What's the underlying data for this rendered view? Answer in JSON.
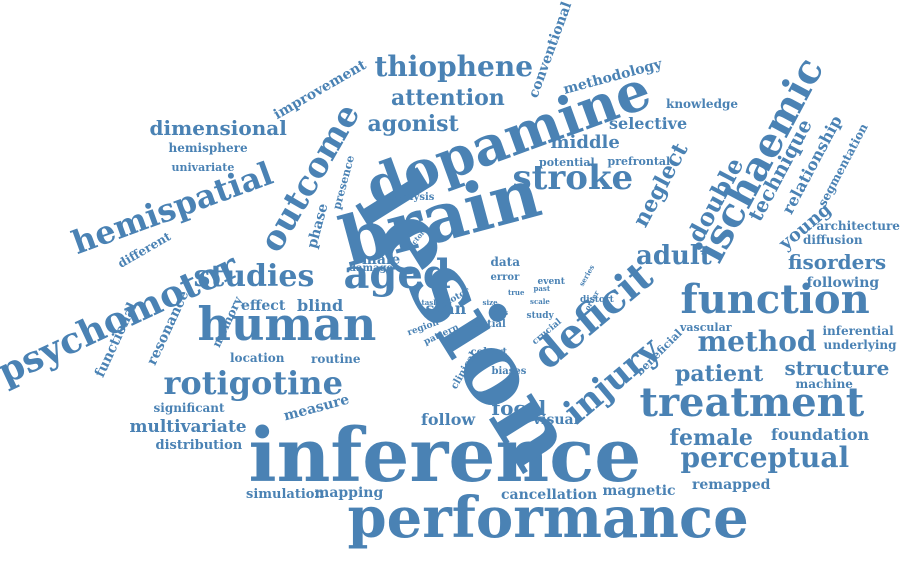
{
  "word_color": "#4a82b4",
  "background": "#ffffff",
  "words": [
    "inference",
    "performance",
    "lesion",
    "brain",
    "dopamine",
    "human",
    "function",
    "treatment",
    "deficit",
    "aged",
    "psychomotor",
    "hemispatial",
    "outcome",
    "ischaemic",
    "injury",
    "stroke",
    "rotigotine",
    "studies",
    "perceptual",
    "method",
    "adult",
    "thiophene",
    "attention",
    "agonist",
    "dimensional",
    "patient",
    "fisorders",
    "double",
    "neglect",
    "technique",
    "structure",
    "female",
    "focal",
    "middle",
    "selective",
    "foundation",
    "relationship",
    "young",
    "multivariate",
    "conventional",
    "improvement",
    "methodology",
    "knowledge",
    "hemisphere",
    "univariate",
    "prefrontal",
    "potential",
    "segmentation",
    "architecture",
    "diffusion",
    "following",
    "inferential",
    "underlying",
    "machine",
    "vascular",
    "beneficial",
    "remapped",
    "magnetic",
    "cancellation",
    "mapping",
    "simulation",
    "distribution",
    "significant",
    "measure",
    "visual",
    "follow",
    "routine",
    "location",
    "memory",
    "resonance",
    "functional",
    "different",
    "effect",
    "blind",
    "male",
    "damage",
    "phase",
    "presence",
    "analysis",
    "scan",
    "data",
    "error",
    "event",
    "spatial",
    "region",
    "pattern",
    "motor",
    "study",
    "crucial",
    "distort",
    "cohort",
    "biases",
    "clinical",
    "series",
    "order",
    "past",
    "true",
    "vector",
    "task",
    "size",
    "bias",
    "scale"
  ]
}
